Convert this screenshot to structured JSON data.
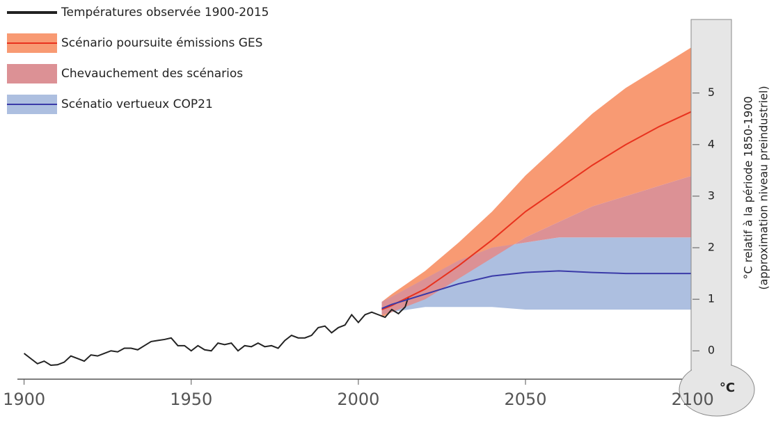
{
  "chart_data": {
    "type": "line",
    "xlim": [
      1898,
      2101
    ],
    "xticks": [
      1900,
      1950,
      2000,
      2050,
      2100
    ],
    "ylim": [
      -0.55,
      6.4
    ],
    "yticks": [
      0,
      1,
      2,
      3,
      4,
      5
    ],
    "y_axis_label": [
      "°C relatif à la période 1850-1900",
      "(approximation niveau preindustriel)"
    ],
    "unit_label": "°C",
    "series": [
      {
        "name": "Températures observée 1900-2015",
        "color": "#222222",
        "x": [
          1900,
          1902,
          1904,
          1906,
          1908,
          1910,
          1912,
          1914,
          1916,
          1918,
          1920,
          1922,
          1924,
          1926,
          1928,
          1930,
          1932,
          1934,
          1936,
          1938,
          1940,
          1942,
          1944,
          1946,
          1948,
          1950,
          1952,
          1954,
          1956,
          1958,
          1960,
          1962,
          1964,
          1966,
          1968,
          1970,
          1972,
          1974,
          1976,
          1978,
          1980,
          1982,
          1984,
          1986,
          1988,
          1990,
          1992,
          1994,
          1996,
          1998,
          2000,
          2002,
          2004,
          2006,
          2008,
          2010,
          2012,
          2014,
          2015
        ],
        "values": [
          -0.05,
          -0.15,
          -0.25,
          -0.2,
          -0.28,
          -0.27,
          -0.22,
          -0.1,
          -0.15,
          -0.2,
          -0.08,
          -0.1,
          -0.05,
          0.0,
          -0.02,
          0.05,
          0.05,
          0.02,
          0.1,
          0.18,
          0.2,
          0.22,
          0.25,
          0.1,
          0.1,
          0.0,
          0.1,
          0.02,
          0.0,
          0.15,
          0.12,
          0.15,
          0.0,
          0.1,
          0.08,
          0.15,
          0.08,
          0.1,
          0.05,
          0.2,
          0.3,
          0.25,
          0.25,
          0.3,
          0.45,
          0.48,
          0.35,
          0.45,
          0.5,
          0.7,
          0.55,
          0.7,
          0.75,
          0.7,
          0.65,
          0.8,
          0.72,
          0.85,
          1.05
        ]
      },
      {
        "name": "Scénario poursuite émissions GES",
        "color": "#e8321e",
        "band_color": "#f89a73",
        "x": [
          2007,
          2010,
          2020,
          2030,
          2040,
          2050,
          2060,
          2070,
          2080,
          2090,
          2100
        ],
        "values": [
          0.8,
          0.88,
          1.2,
          1.65,
          2.15,
          2.7,
          3.15,
          3.6,
          4.0,
          4.35,
          4.65
        ],
        "lower": [
          0.65,
          0.75,
          1.0,
          1.4,
          1.8,
          2.2,
          2.5,
          2.8,
          3.0,
          3.2,
          3.4
        ],
        "upper": [
          0.95,
          1.1,
          1.55,
          2.1,
          2.7,
          3.4,
          4.0,
          4.6,
          5.1,
          5.5,
          5.9
        ]
      },
      {
        "name": "Scénatio vertueux COP21",
        "color": "#3a3aa8",
        "band_color": "#adbfe0",
        "x": [
          2007,
          2010,
          2020,
          2030,
          2040,
          2050,
          2060,
          2070,
          2080,
          2090,
          2100
        ],
        "values": [
          0.82,
          0.9,
          1.1,
          1.3,
          1.45,
          1.52,
          1.55,
          1.52,
          1.5,
          1.5,
          1.5
        ],
        "lower": [
          0.7,
          0.75,
          0.85,
          0.85,
          0.85,
          0.8,
          0.8,
          0.8,
          0.8,
          0.8,
          0.8
        ],
        "upper": [
          0.95,
          1.05,
          1.4,
          1.75,
          2.0,
          2.1,
          2.2,
          2.2,
          2.2,
          2.2,
          2.2
        ]
      }
    ],
    "overlap": {
      "name": "Chevauchement des scénarios",
      "color": "#dc9195"
    }
  }
}
